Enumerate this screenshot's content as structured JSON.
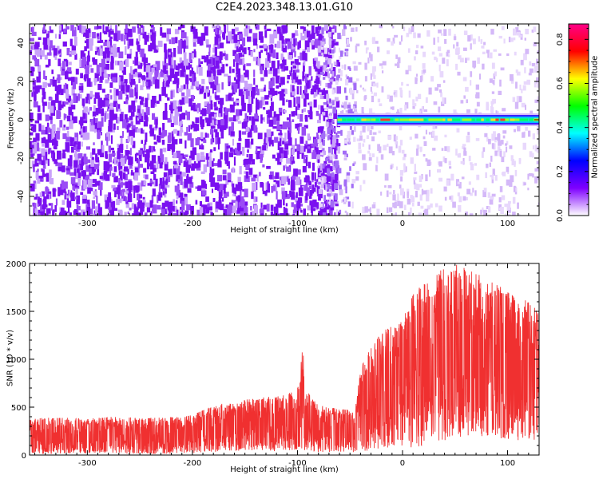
{
  "title": "C2E4.2023.348.13.01.G10",
  "chart_data": [
    {
      "type": "heatmap",
      "xlabel": "Height of straight line (km)",
      "ylabel": "Frequency (Hz)",
      "xlim": [
        -355,
        130
      ],
      "ylim": [
        -50,
        50
      ],
      "xticks": [
        -300,
        -200,
        -100,
        0,
        100
      ],
      "yticks": [
        -40,
        -20,
        0,
        20,
        40
      ],
      "description_regions": [
        {
          "x_range": [
            -355,
            -62
          ],
          "freq_range": [
            -50,
            50
          ],
          "normalized_amplitude": 0.1
        },
        {
          "x_range": [
            -62,
            130
          ],
          "freq_range": [
            -50,
            50
          ],
          "normalized_amplitude": 0.02
        },
        {
          "x_range": [
            -62,
            130
          ],
          "freq_range": [
            -2,
            2
          ],
          "normalized_amplitude": 0.5
        }
      ],
      "colorbar": {
        "label": "Normalized spectral amplitude",
        "range": [
          0.0,
          0.87
        ],
        "ticks": [
          0.0,
          0.2,
          0.4,
          0.6,
          0.8
        ],
        "colormap": [
          "#ffffff",
          "#7f00ff",
          "#0000ff",
          "#00ffff",
          "#00ff00",
          "#ffff00",
          "#ff0000",
          "#ff0088"
        ]
      }
    },
    {
      "type": "line",
      "xlabel": "Height of straight line (km)",
      "ylabel": "SNR (10 * v/v)",
      "xlim": [
        -355,
        130
      ],
      "ylim": [
        0,
        2000
      ],
      "xticks": [
        -300,
        -200,
        -100,
        0,
        100
      ],
      "yticks": [
        0,
        500,
        1000,
        1500,
        2000
      ],
      "series": [
        {
          "color": "#f03030",
          "envelope": {
            "x": [
              -355,
              -320,
              -300,
              -280,
              -250,
              -220,
              -200,
              -180,
              -160,
              -140,
              -120,
              -110,
              -100,
              -97,
              -95,
              -93,
              -90,
              -80,
              -60,
              -45,
              -40,
              -30,
              -20,
              -10,
              0,
              10,
              20,
              30,
              40,
              50,
              60,
              70,
              80,
              90,
              100,
              110,
              120,
              130
            ],
            "max": [
              380,
              400,
              380,
              400,
              390,
              400,
              420,
              520,
              560,
              600,
              620,
              640,
              700,
              900,
              1180,
              700,
              680,
              520,
              480,
              470,
              900,
              1150,
              1300,
              1350,
              1400,
              1700,
              1800,
              1900,
              1950,
              2000,
              1950,
              1900,
              1850,
              1800,
              1700,
              1650,
              1600,
              1500
            ],
            "min": [
              10,
              10,
              10,
              10,
              10,
              10,
              20,
              30,
              40,
              40,
              40,
              50,
              50,
              60,
              60,
              40,
              30,
              30,
              30,
              30,
              40,
              40,
              50,
              50,
              60,
              80,
              100,
              120,
              150,
              180,
              200,
              200,
              190,
              180,
              160,
              150,
              150,
              150
            ],
            "mean": [
              180,
              190,
              185,
              190,
              195,
              200,
              220,
              260,
              300,
              320,
              340,
              360,
              380,
              500,
              700,
              380,
              350,
              300,
              290,
              290,
              550,
              700,
              800,
              850,
              900,
              1000,
              1050,
              1080,
              1100,
              1100,
              1080,
              1050,
              1000,
              950,
              900,
              880,
              870,
              850
            ]
          }
        }
      ]
    }
  ]
}
